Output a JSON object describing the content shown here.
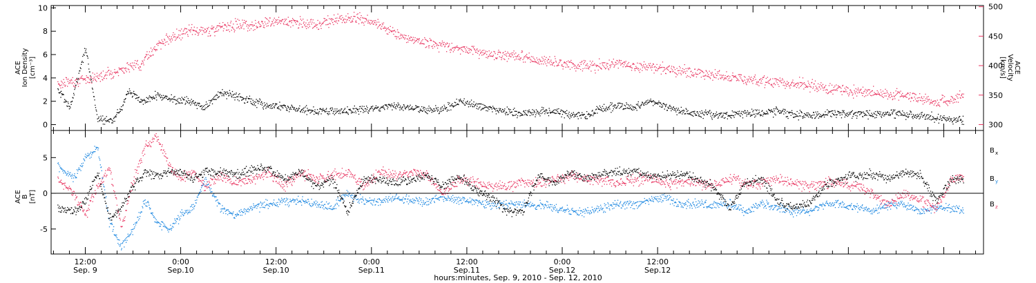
{
  "colors": {
    "density": "#000000",
    "velocity": "#e8335f",
    "bx": "#000000",
    "by": "#1a86e0",
    "bz": "#e8335f",
    "axes": "#000000"
  },
  "chart_data": [
    {
      "type": "scatter",
      "panel": "top",
      "ylabel_left": [
        "ACE",
        "Ion Density",
        "[cm⁻³]"
      ],
      "ylabel_right": [
        "ACE",
        "Velocity",
        "[km/s]"
      ],
      "ylim_left": [
        -0.5,
        10.2
      ],
      "yticks_left": [
        "0",
        "2",
        "4",
        "6",
        "8",
        "10"
      ],
      "ylim_right": [
        290,
        502
      ],
      "yticks_right": [
        "300",
        "350",
        "400",
        "450",
        "500"
      ],
      "grid": false,
      "series": [
        {
          "key": "density",
          "axis": "left",
          "x": [
            -3.5,
            -2,
            0,
            1.5,
            2.5,
            3.5,
            4.5,
            5.5,
            7,
            9,
            11,
            13,
            15,
            17,
            19,
            21,
            23,
            25,
            27,
            29,
            31,
            33,
            35,
            37,
            39,
            41,
            43,
            45,
            47,
            49,
            51,
            53,
            55,
            57,
            59,
            61,
            63,
            65,
            67,
            69,
            71,
            73,
            75,
            77,
            79,
            81,
            83,
            85,
            87,
            89,
            91,
            93,
            95,
            97,
            99,
            101,
            103,
            105,
            107,
            109,
            110.5
          ],
          "y": [
            3.0,
            1.5,
            6.5,
            0.5,
            0.4,
            0.4,
            1.5,
            3.0,
            2.0,
            2.5,
            2.2,
            2.0,
            1.5,
            2.8,
            2.5,
            2.0,
            1.7,
            1.5,
            1.3,
            1.2,
            1.2,
            1.2,
            1.3,
            1.5,
            1.6,
            1.5,
            1.3,
            1.3,
            2.0,
            1.7,
            1.3,
            1.2,
            1.0,
            1.1,
            1.2,
            0.9,
            0.8,
            1.4,
            1.6,
            1.5,
            2.0,
            1.5,
            1.1,
            0.9,
            0.9,
            0.9,
            1.0,
            1.0,
            1.2,
            0.9,
            0.8,
            0.9,
            1.0,
            1.0,
            0.9,
            1.0,
            0.9,
            0.8,
            0.6,
            0.5,
            0.4
          ]
        },
        {
          "key": "velocity",
          "axis": "right",
          "x": [
            -3.5,
            -1,
            1,
            3,
            5,
            7,
            9,
            11,
            13,
            15,
            17,
            19,
            21,
            23,
            25,
            27,
            29,
            31,
            33,
            35,
            37,
            39,
            41,
            43,
            45,
            47,
            49,
            51,
            53,
            55,
            57,
            59,
            61,
            63,
            65,
            67,
            69,
            71,
            73,
            75,
            77,
            79,
            81,
            83,
            85,
            87,
            89,
            91,
            93,
            95,
            97,
            99,
            101,
            103,
            105,
            107,
            109,
            110.5
          ],
          "y": [
            370,
            375,
            380,
            388,
            395,
            405,
            435,
            450,
            458,
            460,
            465,
            470,
            470,
            475,
            475,
            473,
            470,
            478,
            480,
            478,
            470,
            455,
            445,
            440,
            435,
            430,
            425,
            420,
            418,
            415,
            410,
            405,
            402,
            400,
            400,
            405,
            400,
            398,
            395,
            392,
            388,
            385,
            382,
            378,
            375,
            372,
            370,
            368,
            362,
            360,
            358,
            356,
            352,
            350,
            345,
            338,
            345,
            350
          ]
        }
      ]
    },
    {
      "type": "scatter",
      "panel": "bottom",
      "ylabel_left": [
        "ACE",
        "B",
        "[nT]"
      ],
      "ylim": [
        -8.5,
        8.8
      ],
      "yticks": [
        "-5",
        "0",
        "5"
      ],
      "legend_position": "right",
      "grid": false,
      "series": [
        {
          "key": "bx",
          "name": "Bx",
          "x": [
            -3.5,
            -1.5,
            0,
            1.5,
            3,
            4.5,
            6,
            7.5,
            9,
            10.5,
            12,
            13.5,
            15,
            17,
            19,
            21,
            23,
            25,
            27,
            29,
            31,
            33,
            35,
            37,
            39,
            41,
            43,
            45,
            47,
            49,
            51,
            53,
            55,
            57,
            59,
            61,
            63,
            65,
            67,
            69,
            71,
            73,
            75,
            77,
            79,
            81,
            83,
            85,
            87,
            89,
            91,
            93,
            95,
            97,
            99,
            101,
            103,
            105,
            107,
            109,
            110.5
          ],
          "y": [
            -2,
            -2.5,
            -1,
            3,
            -3.5,
            -2,
            1,
            3,
            2.5,
            3,
            3,
            2,
            3,
            3,
            2.5,
            3.5,
            3.5,
            2,
            3,
            1,
            2,
            -2.5,
            2,
            2,
            1.5,
            2,
            2.5,
            1,
            2.5,
            0.5,
            -0.5,
            -2.5,
            -2.5,
            2.5,
            1.5,
            3,
            2,
            2.8,
            3,
            3,
            2.5,
            2.5,
            2.8,
            2,
            1,
            -2,
            1.5,
            2,
            -1,
            -2,
            -1.5,
            1,
            2,
            2.5,
            2.8,
            2,
            3,
            2.5,
            -1,
            2,
            2
          ]
        },
        {
          "key": "by",
          "name": "By",
          "x": [
            -3.5,
            -1.5,
            0,
            1.5,
            3,
            4.5,
            6,
            7.5,
            9,
            10.5,
            12,
            13.5,
            15,
            17,
            19,
            21,
            23,
            25,
            27,
            29,
            31,
            33,
            35,
            37,
            39,
            41,
            43,
            45,
            47,
            49,
            51,
            53,
            55,
            57,
            59,
            61,
            63,
            65,
            67,
            69,
            71,
            73,
            75,
            77,
            79,
            81,
            83,
            85,
            87,
            89,
            91,
            93,
            95,
            97,
            99,
            101,
            103,
            105,
            107,
            109,
            110.5
          ],
          "y": [
            4,
            2,
            5,
            6.5,
            -4,
            -7.5,
            -5,
            -1,
            -4,
            -5,
            -3,
            -2,
            2,
            -2,
            -3,
            -2,
            -1.5,
            -1,
            -1,
            -1.5,
            -2,
            0,
            -1,
            -1,
            -0.5,
            -1,
            -1,
            -0.5,
            -1,
            -1,
            -1.5,
            -1.5,
            -1.5,
            -1.5,
            -2,
            -2.5,
            -2.5,
            -2,
            -1.5,
            -1.5,
            -1,
            -0.5,
            -1.5,
            -1.5,
            -1.5,
            -1.5,
            -2.5,
            -1.5,
            -2,
            -2.5,
            -2.5,
            -1.5,
            -1.5,
            -2,
            -2.5,
            -1.5,
            -1.5,
            -2.5,
            -2,
            -2,
            -2.5
          ]
        },
        {
          "key": "bz",
          "name": "Bz",
          "x": [
            -3.5,
            -1.5,
            0,
            1.5,
            3,
            4.5,
            6,
            7.5,
            9,
            10.5,
            12,
            13.5,
            15,
            17,
            19,
            21,
            23,
            25,
            27,
            29,
            31,
            33,
            35,
            37,
            39,
            41,
            43,
            45,
            47,
            49,
            51,
            53,
            55,
            57,
            59,
            61,
            63,
            65,
            67,
            69,
            71,
            73,
            75,
            77,
            79,
            81,
            83,
            85,
            87,
            89,
            91,
            93,
            95,
            97,
            99,
            101,
            103,
            105,
            107,
            109,
            110.5
          ],
          "y": [
            2,
            0,
            -3,
            1,
            3.5,
            -5,
            2,
            6.5,
            8,
            4,
            2,
            3,
            1,
            2.5,
            1.5,
            2,
            3,
            1,
            3,
            2,
            2.5,
            3,
            1,
            3,
            2.5,
            3,
            2.5,
            0,
            2,
            1.5,
            1,
            1,
            1.5,
            1.5,
            2,
            2.5,
            2,
            2,
            1.5,
            2,
            2,
            1.5,
            1.5,
            1.5,
            1,
            2,
            1.5,
            1.5,
            2,
            1.5,
            1,
            1.5,
            1.5,
            1,
            0,
            -1.5,
            0,
            -1,
            -2,
            2,
            2.5
          ]
        }
      ]
    }
  ],
  "x_axis": {
    "ticks": [
      {
        "x": 0,
        "time": "12:00",
        "date": "Sep. 9"
      },
      {
        "x": 12,
        "time": "0:00",
        "date": "Sep.10"
      },
      {
        "x": 24,
        "time": "12:00",
        "date": "Sep.10"
      },
      {
        "x": 36,
        "time": "0:00",
        "date": "Sep.11"
      },
      {
        "x": 48,
        "time": "12:00",
        "date": "Sep.11"
      },
      {
        "x": 60,
        "time": "0:00",
        "date": "Sep.12"
      },
      {
        "x": 72,
        "time": "12:00",
        "date": "Sep.12"
      }
    ],
    "label": "hours:minutes, Sep.  9, 2010 - Sep. 12, 2010"
  }
}
